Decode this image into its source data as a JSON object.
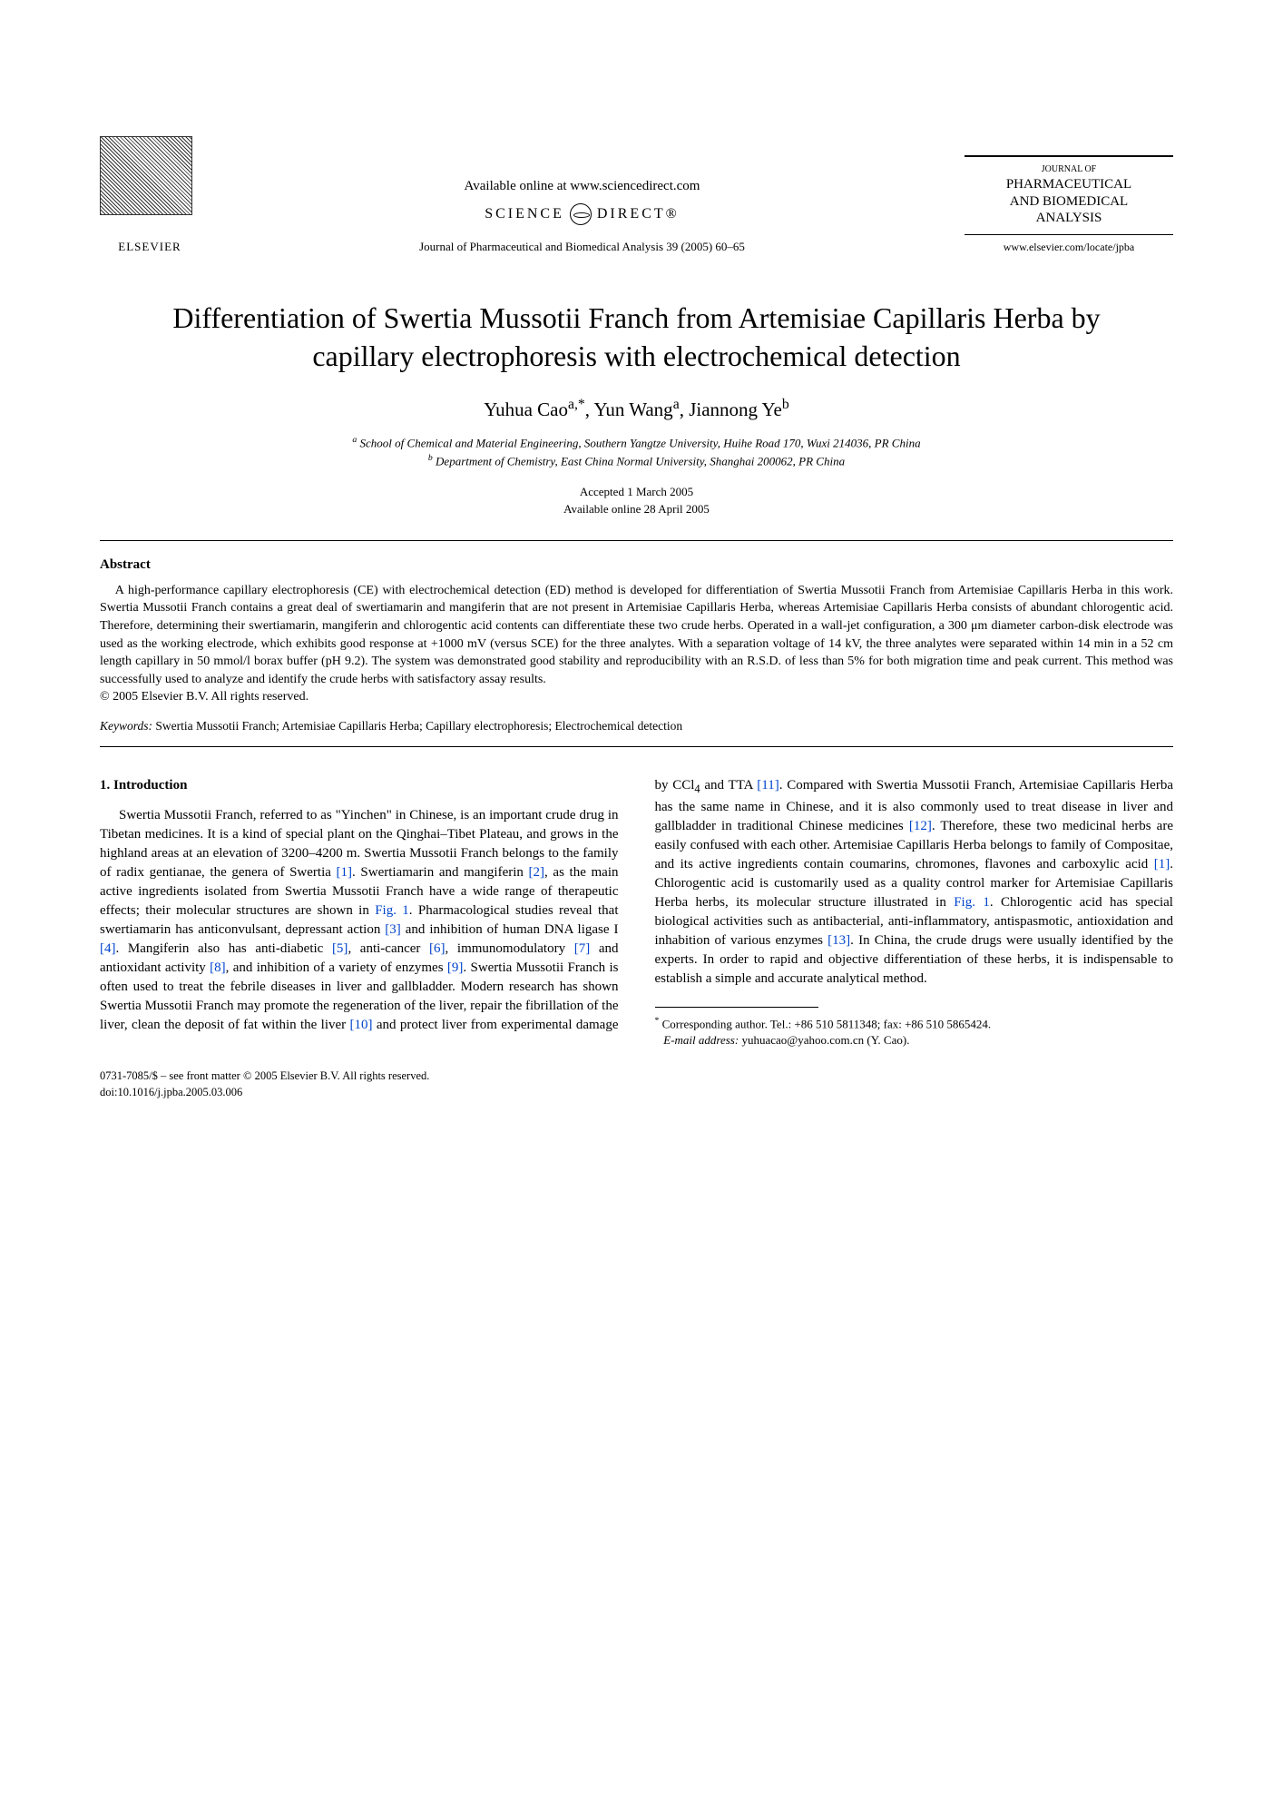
{
  "header": {
    "elsevier": "ELSEVIER",
    "available_online": "Available online at www.sciencedirect.com",
    "sciencedirect_left": "SCIENCE",
    "sciencedirect_right": "DIRECT®",
    "journal_ref": "Journal of Pharmaceutical and Biomedical Analysis 39 (2005) 60–65",
    "journal_box_top": "JOURNAL OF",
    "journal_box_main1": "PHARMACEUTICAL",
    "journal_box_main2": "AND BIOMEDICAL",
    "journal_box_main3": "ANALYSIS",
    "journal_url": "www.elsevier.com/locate/jpba"
  },
  "title": "Differentiation of Swertia Mussotii Franch from Artemisiae Capillaris Herba by capillary electrophoresis with electrochemical detection",
  "authors_html": "Yuhua Cao",
  "author1": "Yuhua Cao",
  "author1_sup": "a,*",
  "author2": ", Yun Wang",
  "author2_sup": "a",
  "author3": ", Jiannong Ye",
  "author3_sup": "b",
  "affiliations": {
    "a_sup": "a",
    "a": " School of Chemical and Material Engineering, Southern Yangtze University, Huihe Road 170, Wuxi 214036, PR China",
    "b_sup": "b",
    "b": " Department of Chemistry, East China Normal University, Shanghai 200062, PR China"
  },
  "dates": {
    "accepted": "Accepted 1 March 2005",
    "online": "Available online 28 April 2005"
  },
  "abstract": {
    "heading": "Abstract",
    "body": "A high-performance capillary electrophoresis (CE) with electrochemical detection (ED) method is developed for differentiation of Swertia Mussotii Franch from Artemisiae Capillaris Herba in this work. Swertia Mussotii Franch contains a great deal of swertiamarin and mangiferin that are not present in Artemisiae Capillaris Herba, whereas Artemisiae Capillaris Herba consists of abundant chlorogentic acid. Therefore, determining their swertiamarin, mangiferin and chlorogentic acid contents can differentiate these two crude herbs. Operated in a wall-jet configuration, a 300 μm diameter carbon-disk electrode was used as the working electrode, which exhibits good response at +1000 mV (versus SCE) for the three analytes. With a separation voltage of 14 kV, the three analytes were separated within 14 min in a 52 cm length capillary in 50 mmol/l borax buffer (pH 9.2). The system was demonstrated good stability and reproducibility with an R.S.D. of less than 5% for both migration time and peak current. This method was successfully used to analyze and identify the crude herbs with satisfactory assay results.",
    "copyright": "© 2005 Elsevier B.V. All rights reserved."
  },
  "keywords": {
    "label": "Keywords:",
    "text": "  Swertia Mussotii Franch; Artemisiae Capillaris Herba; Capillary electrophoresis; Electrochemical detection"
  },
  "introduction": {
    "heading": "1.  Introduction",
    "para_left": "Swertia Mussotii Franch, referred to as \"Yinchen\" in Chinese, is an important crude drug in Tibetan medicines. It is a kind of special plant on the Qinghai–Tibet Plateau, and grows in the highland areas at an elevation of 3200–4200 m. Swertia Mussotii Franch belongs to the family of radix gentianae, the genera of Swertia [1]. Swertiamarin and mangiferin [2], as the main active ingredients isolated from Swertia Mussotii Franch have a wide range of therapeutic effects; their molecular structures are shown in Fig. 1. Pharmacological studies reveal that swertiamarin has anticonvulsant, depressant action [3] and inhibition of human DNA ligase I [4]. Mangiferin also has anti-diabetic [5], anti-cancer [6], immunomodulatory [7] and antioxidant activity [8], and inhibition of a variety of enzymes [9]. Swertia Mussotii Franch is often used to treat the febrile diseases in liver and gallbladder. Modern research has",
    "para_right": "shown Swertia Mussotii Franch may promote the regeneration of the liver, repair the fibrillation of the liver, clean the deposit of fat within the liver [10] and protect liver from experimental damage by CCl4 and TTA [11]. Compared with Swertia Mussotii Franch, Artemisiae Capillaris Herba has the same name in Chinese, and it is also commonly used to treat disease in liver and gallbladder in traditional Chinese medicines [12]. Therefore, these two medicinal herbs are easily confused with each other. Artemisiae Capillaris Herba belongs to family of Compositae, and its active ingredients contain coumarins, chromones, flavones and carboxylic acid [1]. Chlorogentic acid is customarily used as a quality control marker for Artemisiae Capillaris Herba herbs, its molecular structure illustrated in Fig. 1. Chlorogentic acid has special biological activities such as antibacterial, anti-inflammatory, antispasmotic, antioxidation and inhabition of various enzymes [13]. In China, the crude drugs were usually identified by the experts. In order to rapid and objective differentiation of these herbs, it is indispensable to establish a simple and accurate analytical method."
  },
  "footnotes": {
    "corr_marker": "*",
    "corr": " Corresponding author. Tel.: +86 510 5811348; fax: +86 510 5865424.",
    "email_label": "E-mail address:",
    "email": " yuhuacao@yahoo.com.cn (Y. Cao)."
  },
  "bottom": {
    "line1": "0731-7085/$ – see front matter © 2005 Elsevier B.V. All rights reserved.",
    "line2": "doi:10.1016/j.jpba.2005.03.006"
  },
  "refs": {
    "r1": "[1]",
    "r2": "[2]",
    "r3": "[3]",
    "r4": "[4]",
    "r5": "[5]",
    "r6": "[6]",
    "r7": "[7]",
    "r8": "[8]",
    "r9": "[9]",
    "r10": "[10]",
    "r11": "[11]",
    "r12": "[12]",
    "r13": "[13]",
    "fig1": "Fig. 1"
  },
  "colors": {
    "link": "#0044cc",
    "text": "#000000",
    "bg": "#ffffff"
  }
}
